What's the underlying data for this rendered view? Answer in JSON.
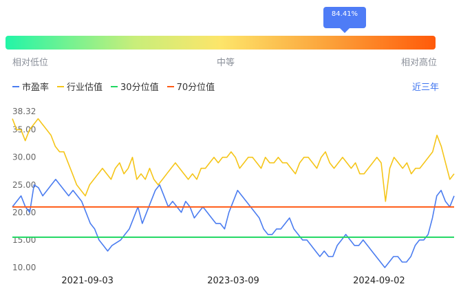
{
  "badge": {
    "value": "84.41%"
  },
  "scale": {
    "low": "相对低位",
    "mid": "中等",
    "high": "相对高位"
  },
  "legend": [
    {
      "label": "市盈率",
      "color": "#4a7cf0"
    },
    {
      "label": "行业估值",
      "color": "#f5c518"
    },
    {
      "label": "30分位值",
      "color": "#1ed760"
    },
    {
      "label": "70分位值",
      "color": "#ff5a14"
    }
  ],
  "period_button": "近三年",
  "chart_data": {
    "type": "line",
    "percentile": 84.41,
    "y_ticks": [
      "38.32",
      "35.00",
      "30.00",
      "25.00",
      "20.00",
      "15.00",
      "10.00"
    ],
    "ylim": [
      10,
      38.32
    ],
    "x_tick_labels": [
      "2021-09-03",
      "2023-03-09",
      "2024-09-02"
    ],
    "x_positions_index": [
      0.17,
      0.5,
      0.83
    ],
    "series": [
      {
        "name": "市盈率",
        "color": "#4a7cf0",
        "values": [
          21,
          22,
          23,
          21,
          20,
          25,
          24.5,
          23,
          24,
          25,
          26,
          25,
          24,
          23,
          24,
          23,
          22,
          20,
          18,
          17,
          15,
          14,
          13,
          14,
          14.5,
          15,
          16,
          17,
          19,
          21,
          18,
          20,
          22,
          24,
          25,
          23,
          21,
          22,
          21,
          20,
          22,
          21,
          19,
          20,
          21,
          20,
          19,
          18,
          18,
          17,
          20,
          22,
          24,
          23,
          22,
          21,
          20,
          19,
          17,
          16,
          16,
          17,
          17,
          18,
          19,
          17,
          16,
          15,
          15,
          14,
          13,
          12,
          13,
          12,
          12,
          14,
          15,
          16,
          15,
          14,
          14,
          15,
          14,
          13,
          12,
          11,
          10,
          11,
          12,
          12,
          11,
          11,
          12,
          14,
          15,
          15,
          16,
          19,
          23,
          24,
          22,
          21,
          23
        ]
      },
      {
        "name": "行业估值",
        "color": "#f5c518",
        "values": [
          37,
          35,
          35,
          33,
          35,
          36,
          37,
          36,
          35,
          34,
          32,
          31,
          31,
          29,
          27,
          25,
          24,
          23,
          25,
          26,
          27,
          28,
          27,
          26,
          28,
          29,
          27,
          28,
          30,
          26,
          27,
          26,
          28,
          26,
          25,
          26,
          27,
          28,
          29,
          28,
          27,
          26,
          27,
          26,
          28,
          28,
          29,
          30,
          29,
          30,
          30,
          31,
          30,
          28,
          29,
          30,
          30,
          29,
          28,
          30,
          29,
          29,
          30,
          29,
          29,
          28,
          27,
          29,
          30,
          30,
          29,
          28,
          30,
          31,
          29,
          28,
          29,
          30,
          29,
          28,
          29,
          27,
          27,
          28,
          29,
          30,
          29,
          22,
          28,
          30,
          29,
          28,
          29,
          27,
          28,
          28,
          29,
          30,
          31,
          34,
          32,
          29,
          26,
          27
        ]
      },
      {
        "name": "30分位值",
        "color": "#1ed760",
        "constant": 15.5
      },
      {
        "name": "70分位值",
        "color": "#ff5a14",
        "constant": 21.0
      }
    ]
  }
}
